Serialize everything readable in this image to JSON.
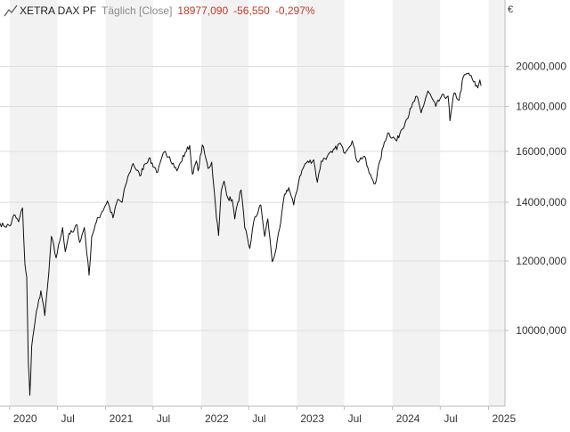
{
  "header": {
    "instrument": "XETRA DAX PF",
    "frequency": "Täglich [Close]",
    "last": "18977,090",
    "change": "-56,550",
    "change_pct": "-0,297%",
    "currency_unit": "€",
    "down_color": "#c0392b",
    "icon": "line-chart-icon"
  },
  "chart_data": {
    "type": "line",
    "title": "XETRA DAX PF",
    "xlabel": "",
    "ylabel": "€",
    "y_scale": "log",
    "ylim": [
      8200,
      23800
    ],
    "xlim": [
      "2019-11-25",
      "2025-03-05"
    ],
    "grid": true,
    "legend": "none",
    "line_color": "#111111",
    "y_ticks": [
      {
        "value": 10000,
        "label": "10000,000"
      },
      {
        "value": 12000,
        "label": "12000,000"
      },
      {
        "value": 14000,
        "label": "14000,000"
      },
      {
        "value": 16000,
        "label": "16000,000"
      },
      {
        "value": 18000,
        "label": "18000,000"
      },
      {
        "value": 20000,
        "label": "20000,000"
      }
    ],
    "x_ticks": [
      {
        "date": "2020-01-01",
        "label": "2020"
      },
      {
        "date": "2020-07-01",
        "label": "Jul"
      },
      {
        "date": "2021-01-01",
        "label": "2021"
      },
      {
        "date": "2021-07-01",
        "label": "Jul"
      },
      {
        "date": "2022-01-01",
        "label": "2022"
      },
      {
        "date": "2022-07-01",
        "label": "Jul"
      },
      {
        "date": "2023-01-01",
        "label": "2023"
      },
      {
        "date": "2023-07-01",
        "label": "Jul"
      },
      {
        "date": "2024-01-01",
        "label": "2024"
      },
      {
        "date": "2024-07-01",
        "label": "Jul"
      },
      {
        "date": "2025-01-01",
        "label": "2025"
      }
    ],
    "series": [
      {
        "points": [
          [
            "2019-11-25",
            13250
          ],
          [
            "2019-12-10",
            13150
          ],
          [
            "2020-01-06",
            13200
          ],
          [
            "2020-01-17",
            13550
          ],
          [
            "2020-02-04",
            13300
          ],
          [
            "2020-02-19",
            13790
          ],
          [
            "2020-02-28",
            11900
          ],
          [
            "2020-03-06",
            11500
          ],
          [
            "2020-03-12",
            9200
          ],
          [
            "2020-03-18",
            8440
          ],
          [
            "2020-03-25",
            9600
          ],
          [
            "2020-04-08",
            10300
          ],
          [
            "2020-04-17",
            10650
          ],
          [
            "2020-04-29",
            11100
          ],
          [
            "2020-05-14",
            10400
          ],
          [
            "2020-05-29",
            11600
          ],
          [
            "2020-06-08",
            12800
          ],
          [
            "2020-06-26",
            12100
          ],
          [
            "2020-07-10",
            12650
          ],
          [
            "2020-07-21",
            13100
          ],
          [
            "2020-07-31",
            12300
          ],
          [
            "2020-08-14",
            12900
          ],
          [
            "2020-08-31",
            12950
          ],
          [
            "2020-09-14",
            13200
          ],
          [
            "2020-09-24",
            12600
          ],
          [
            "2020-10-12",
            13100
          ],
          [
            "2020-10-30",
            11560
          ],
          [
            "2020-11-09",
            12800
          ],
          [
            "2020-11-27",
            13300
          ],
          [
            "2020-12-18",
            13650
          ],
          [
            "2021-01-08",
            14050
          ],
          [
            "2021-01-29",
            13440
          ],
          [
            "2021-02-16",
            14100
          ],
          [
            "2021-03-05",
            14000
          ],
          [
            "2021-03-17",
            14600
          ],
          [
            "2021-04-01",
            15100
          ],
          [
            "2021-04-16",
            15500
          ],
          [
            "2021-05-12",
            15000
          ],
          [
            "2021-05-28",
            15450
          ],
          [
            "2021-06-15",
            15700
          ],
          [
            "2021-07-19",
            15150
          ],
          [
            "2021-08-13",
            15980
          ],
          [
            "2021-09-02",
            15780
          ],
          [
            "2021-09-30",
            15200
          ],
          [
            "2021-10-15",
            15550
          ],
          [
            "2021-11-01",
            15950
          ],
          [
            "2021-11-18",
            16250
          ],
          [
            "2021-11-26",
            15250
          ],
          [
            "2021-12-01",
            15100
          ],
          [
            "2021-12-13",
            15600
          ],
          [
            "2021-12-20",
            15200
          ],
          [
            "2022-01-05",
            16270
          ],
          [
            "2022-01-14",
            15900
          ],
          [
            "2022-01-27",
            15300
          ],
          [
            "2022-02-10",
            15550
          ],
          [
            "2022-02-24",
            13900
          ],
          [
            "2022-03-08",
            12830
          ],
          [
            "2022-03-18",
            14400
          ],
          [
            "2022-03-29",
            14800
          ],
          [
            "2022-04-13",
            14150
          ],
          [
            "2022-04-29",
            14100
          ],
          [
            "2022-05-09",
            13400
          ],
          [
            "2022-05-20",
            13980
          ],
          [
            "2022-06-02",
            14460
          ],
          [
            "2022-06-16",
            13100
          ],
          [
            "2022-07-05",
            12400
          ],
          [
            "2022-07-20",
            13300
          ],
          [
            "2022-08-16",
            13900
          ],
          [
            "2022-08-31",
            12800
          ],
          [
            "2022-09-12",
            13400
          ],
          [
            "2022-09-29",
            11980
          ],
          [
            "2022-10-14",
            12400
          ],
          [
            "2022-10-31",
            13250
          ],
          [
            "2022-11-15",
            14300
          ],
          [
            "2022-12-01",
            14550
          ],
          [
            "2022-12-20",
            13900
          ],
          [
            "2023-01-12",
            15000
          ],
          [
            "2023-02-02",
            15500
          ],
          [
            "2023-03-06",
            15650
          ],
          [
            "2023-03-20",
            14750
          ],
          [
            "2023-04-04",
            15600
          ],
          [
            "2023-04-27",
            15800
          ],
          [
            "2023-05-16",
            15950
          ],
          [
            "2023-06-15",
            16350
          ],
          [
            "2023-06-29",
            15950
          ],
          [
            "2023-07-31",
            16450
          ],
          [
            "2023-08-18",
            15600
          ],
          [
            "2023-09-15",
            15800
          ],
          [
            "2023-10-04",
            15100
          ],
          [
            "2023-10-27",
            14700
          ],
          [
            "2023-11-14",
            15600
          ],
          [
            "2023-12-01",
            16400
          ],
          [
            "2023-12-14",
            16800
          ],
          [
            "2024-01-17",
            16450
          ],
          [
            "2024-02-02",
            16900
          ],
          [
            "2024-02-23",
            17400
          ],
          [
            "2024-03-13",
            17950
          ],
          [
            "2024-04-02",
            18490
          ],
          [
            "2024-04-19",
            17700
          ],
          [
            "2024-05-15",
            18750
          ],
          [
            "2024-06-14",
            18000
          ],
          [
            "2024-07-04",
            18450
          ],
          [
            "2024-07-31",
            18500
          ],
          [
            "2024-08-07",
            17340
          ],
          [
            "2024-08-23",
            18650
          ],
          [
            "2024-09-11",
            18300
          ],
          [
            "2024-09-27",
            19450
          ],
          [
            "2024-10-18",
            19650
          ],
          [
            "2024-11-05",
            19200
          ],
          [
            "2024-11-21",
            18900
          ],
          [
            "2024-11-29",
            19300
          ],
          [
            "2024-12-04",
            19000
          ]
        ]
      }
    ]
  }
}
